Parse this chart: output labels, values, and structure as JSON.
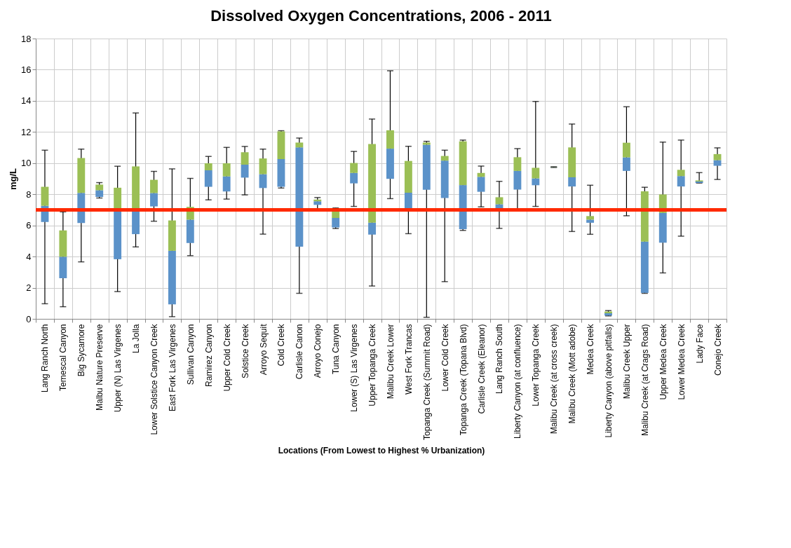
{
  "chart_data": {
    "type": "box",
    "title": "Dissolved Oxygen Concentrations, 2006 - 2011",
    "xlabel": "Locations (From Lowest to Highest % Urbanization)",
    "ylabel": "mg/L",
    "categories": [
      "Lang Ranch North",
      "Temescal Canyon",
      "Big Sycamore",
      "Malbu Nature Preserve",
      "Upper (N) Las Virgenes",
      "La Jolla",
      "Lower Solstice Canyon Creek",
      "East Fork Las Virgenes",
      "Sullivan Canyon",
      "Ramirez Canyon",
      "Upper Cold Creek",
      "Solstice Creek",
      "Arroyo Sequit",
      "Cold Creek",
      "Carlisle Canon",
      "Arroyo Conejo",
      "Tuna Canyon",
      "Lower (S) Las Virgenes",
      "Upper Topanga Creek",
      "Malibu Creek Lower",
      "West Fork Trancas",
      "Topanga Creek (Summit Road)",
      "Lower Cold Creek",
      "Topanga Creek (Topana Blvd)",
      "Carlisle Creek (Eleanor)",
      "Lang Ranch South",
      "Liberty Canyon (at confluence)",
      "Lower Topanga Creek",
      "Malibu Creek (at cross creek)",
      "Malibu Creek (Mott adobe)",
      "Medea Creek",
      "Liberty Canyon (above pitfalls)",
      "Malibu Creek Upper",
      "Malibu Creek (at Crags Road)",
      "Upper Medea Creek",
      "Lower Medea Creek",
      "Lady Face",
      "Conejo Creek"
    ],
    "boxes": [
      {
        "low": 0.97,
        "q1": 6.22,
        "median": 7.26,
        "q3": 8.48,
        "high": 10.83
      },
      {
        "low": 0.78,
        "q1": 2.61,
        "median": 3.99,
        "q3": 5.68,
        "high": 6.87
      },
      {
        "low": 3.66,
        "q1": 6.15,
        "median": 8.09,
        "q3": 10.33,
        "high": 10.9
      },
      {
        "low": 7.76,
        "q1": 7.83,
        "median": 8.26,
        "q3": 8.62,
        "high": 8.75
      },
      {
        "low": 1.75,
        "q1": 3.83,
        "median": 7.05,
        "q3": 8.42,
        "high": 9.8
      },
      {
        "low": 4.62,
        "q1": 5.44,
        "median": 7.05,
        "q3": 9.79,
        "high": 13.22
      },
      {
        "low": 6.27,
        "q1": 7.22,
        "median": 8.08,
        "q3": 8.93,
        "high": 9.47
      },
      {
        "low": 0.14,
        "q1": 0.93,
        "median": 4.37,
        "q3": 6.32,
        "high": 9.63
      },
      {
        "low": 4.06,
        "q1": 4.87,
        "median": 6.37,
        "q3": 7.19,
        "high": 9.02
      },
      {
        "low": 7.64,
        "q1": 8.48,
        "median": 9.54,
        "q3": 9.99,
        "high": 10.43
      },
      {
        "low": 7.69,
        "q1": 8.18,
        "median": 9.15,
        "q3": 9.99,
        "high": 11.01
      },
      {
        "low": 7.96,
        "q1": 9.07,
        "median": 9.9,
        "q3": 10.7,
        "high": 11.07
      },
      {
        "low": 5.44,
        "q1": 8.4,
        "median": 9.29,
        "q3": 10.3,
        "high": 10.9
      },
      {
        "low": 8.4,
        "q1": 8.48,
        "median": 10.26,
        "q3": 12.04,
        "high": 12.08
      },
      {
        "low": 1.64,
        "q1": 4.63,
        "median": 11.01,
        "q3": 11.32,
        "high": 11.61
      },
      {
        "low": 7.05,
        "q1": 7.32,
        "median": 7.55,
        "q3": 7.66,
        "high": 7.79
      },
      {
        "low": 5.8,
        "q1": 5.87,
        "median": 6.48,
        "q3": 6.91,
        "high": 7.12
      },
      {
        "low": 7.22,
        "q1": 8.7,
        "median": 9.37,
        "q3": 10.01,
        "high": 10.75
      },
      {
        "low": 2.11,
        "q1": 5.41,
        "median": 6.18,
        "q3": 11.23,
        "high": 12.83
      },
      {
        "low": 7.72,
        "q1": 8.99,
        "median": 10.93,
        "q3": 12.11,
        "high": 15.93
      },
      {
        "low": 5.47,
        "q1": 6.98,
        "median": 8.1,
        "q3": 10.14,
        "high": 11.08
      },
      {
        "low": 0.1,
        "q1": 8.29,
        "median": 11.18,
        "q3": 11.32,
        "high": 11.4
      },
      {
        "low": 2.39,
        "q1": 7.76,
        "median": 10.16,
        "q3": 10.46,
        "high": 10.83
      },
      {
        "low": 5.68,
        "q1": 5.76,
        "median": 8.59,
        "q3": 11.4,
        "high": 11.48
      },
      {
        "low": 7.19,
        "q1": 8.16,
        "median": 9.12,
        "q3": 9.37,
        "high": 9.81
      },
      {
        "low": 5.81,
        "q1": 7.05,
        "median": 7.36,
        "q3": 7.81,
        "high": 8.83
      },
      {
        "low": 6.98,
        "q1": 8.3,
        "median": 9.5,
        "q3": 10.38,
        "high": 10.93
      },
      {
        "low": 7.22,
        "q1": 8.58,
        "median": 9.02,
        "q3": 9.7,
        "high": 13.96
      },
      {
        "low": 9.72,
        "q1": 9.73,
        "median": 9.74,
        "q3": 9.75,
        "high": 9.77
      },
      {
        "low": 5.61,
        "q1": 8.5,
        "median": 9.09,
        "q3": 11.01,
        "high": 12.51
      },
      {
        "low": 5.43,
        "q1": 6.17,
        "median": 6.37,
        "q3": 6.6,
        "high": 8.58
      },
      {
        "low": 0.19,
        "q1": 0.21,
        "median": 0.36,
        "q3": 0.47,
        "high": 0.53
      },
      {
        "low": 6.62,
        "q1": 9.5,
        "median": 10.37,
        "q3": 11.31,
        "high": 13.62
      },
      {
        "low": 1.64,
        "q1": 1.67,
        "median": 4.96,
        "q3": 8.19,
        "high": 8.45
      },
      {
        "low": 2.95,
        "q1": 4.89,
        "median": 6.8,
        "q3": 7.99,
        "high": 11.35
      },
      {
        "low": 5.31,
        "q1": 8.5,
        "median": 9.17,
        "q3": 9.57,
        "high": 11.48
      },
      {
        "low": 8.72,
        "q1": 8.73,
        "median": 8.82,
        "q3": 8.89,
        "high": 9.39
      },
      {
        "low": 8.95,
        "q1": 9.83,
        "median": 10.19,
        "q3": 10.58,
        "high": 10.98
      }
    ],
    "colors": [
      [
        "#5b92c9",
        "#9bbf55"
      ],
      [
        "#5b92c9",
        "#9bbf55"
      ],
      [
        "#5b92c9",
        "#9bbf55"
      ],
      [
        "#5b92c9",
        "#9bbf55"
      ],
      [
        "#5b92c9",
        "#9bbf55"
      ],
      [
        "#5b92c9",
        "#9bbf55"
      ],
      [
        "#5b92c9",
        "#9bbf55"
      ],
      [
        "#5b92c9",
        "#9bbf55"
      ],
      [
        "#5b92c9",
        "#9bbf55"
      ],
      [
        "#5b92c9",
        "#9bbf55"
      ],
      [
        "#5b92c9",
        "#9bbf55"
      ],
      [
        "#5b92c9",
        "#9bbf55"
      ],
      [
        "#5b92c9",
        "#9bbf55"
      ],
      [
        "#5b92c9",
        "#9bbf55"
      ],
      [
        "#5b92c9",
        "#9bbf55"
      ],
      [
        "#5b92c9",
        "#9bbf55"
      ],
      [
        "#5b92c9",
        "#9bbf55"
      ],
      [
        "#5b92c9",
        "#9bbf55"
      ],
      [
        "#5b92c9",
        "#9bbf55"
      ],
      [
        "#5b92c9",
        "#9bbf55"
      ],
      [
        "#5b92c9",
        "#9bbf55"
      ],
      [
        "#5b92c9",
        "#9bbf55"
      ],
      [
        "#5b92c9",
        "#9bbf55"
      ],
      [
        "#5b92c9",
        "#9bbf55"
      ],
      [
        "#5b92c9",
        "#9bbf55"
      ],
      [
        "#5b92c9",
        "#9bbf55"
      ],
      [
        "#5b92c9",
        "#9bbf55"
      ],
      [
        "#5b92c9",
        "#9bbf55"
      ],
      [
        "#5b92c9",
        "#9bbf55"
      ],
      [
        "#5b92c9",
        "#9bbf55"
      ],
      [
        "#5b92c9",
        "#9bbf55"
      ],
      [
        "#5b92c9",
        "#9bbf55"
      ],
      [
        "#5b92c9",
        "#9bbf55"
      ],
      [
        "#5b92c9",
        "#9bbf55"
      ],
      [
        "#5b92c9",
        "#9bbf55"
      ],
      [
        "#5b92c9",
        "#9bbf55"
      ],
      [
        "#5b92c9",
        "#9bbf55"
      ],
      [
        "#5b92c9",
        "#9bbf55"
      ]
    ],
    "ylim": [
      0,
      18
    ],
    "yticks": [
      0,
      2,
      4,
      6,
      8,
      10,
      12,
      14,
      16,
      18
    ],
    "grid": true,
    "ref_lines": [
      {
        "axis": "y",
        "value": 7,
        "color": "#ff2a00"
      }
    ]
  }
}
